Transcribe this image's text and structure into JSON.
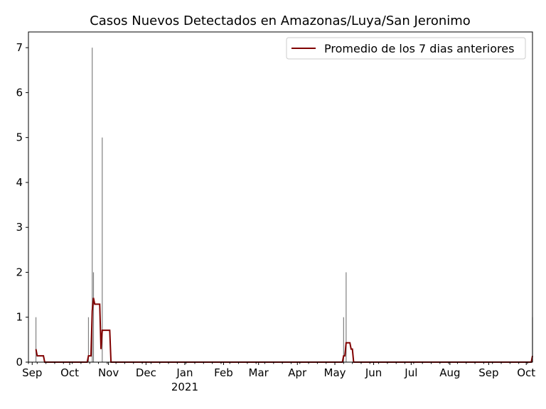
{
  "chart_data": {
    "type": "bar",
    "title": "Casos Nuevos Detectados en Amazonas/Luya/San Jeronimo",
    "xlabel": "",
    "ylabel": "",
    "xlim": [
      "2020-08-29",
      "2021-10-06"
    ],
    "ylim": [
      0,
      7.35
    ],
    "yticks": [
      0,
      1,
      2,
      3,
      4,
      5,
      6,
      7
    ],
    "xticks": [
      {
        "date": "2020-09-01",
        "label": "Sep"
      },
      {
        "date": "2020-10-01",
        "label": "Oct"
      },
      {
        "date": "2020-11-01",
        "label": "Nov"
      },
      {
        "date": "2020-12-01",
        "label": "Dec"
      },
      {
        "date": "2021-01-01",
        "label": "Jan",
        "sublabel": "2021"
      },
      {
        "date": "2021-02-01",
        "label": "Feb"
      },
      {
        "date": "2021-03-01",
        "label": "Mar"
      },
      {
        "date": "2021-04-01",
        "label": "Apr"
      },
      {
        "date": "2021-05-01",
        "label": "May"
      },
      {
        "date": "2021-06-01",
        "label": "Jun"
      },
      {
        "date": "2021-07-01",
        "label": "Jul"
      },
      {
        "date": "2021-08-01",
        "label": "Aug"
      },
      {
        "date": "2021-09-01",
        "label": "Sep"
      },
      {
        "date": "2021-10-01",
        "label": "Oct"
      }
    ],
    "grid": false,
    "legend": "top-right",
    "bars": {
      "color": "#808080",
      "points": [
        [
          "2020-09-04",
          1
        ],
        [
          "2020-10-16",
          1
        ],
        [
          "2020-10-19",
          7
        ],
        [
          "2020-10-20",
          2
        ],
        [
          "2020-10-27",
          5
        ],
        [
          "2021-05-08",
          1
        ],
        [
          "2021-05-10",
          2
        ],
        [
          "2021-10-06",
          1
        ]
      ]
    },
    "series": [
      {
        "name": "Promedio de los 7 dias anteriores",
        "color": "#800000",
        "points": [
          [
            "2020-09-04",
            0.29
          ],
          [
            "2020-09-05",
            0.14
          ],
          [
            "2020-09-10",
            0.14
          ],
          [
            "2020-09-11",
            0
          ],
          [
            "2020-10-15",
            0
          ],
          [
            "2020-10-16",
            0.14
          ],
          [
            "2020-10-18",
            0.14
          ],
          [
            "2020-10-19",
            1.14
          ],
          [
            "2020-10-20",
            1.43
          ],
          [
            "2020-10-21",
            1.29
          ],
          [
            "2020-10-25",
            1.29
          ],
          [
            "2020-10-26",
            0.29
          ],
          [
            "2020-10-27",
            0.71
          ],
          [
            "2020-11-02",
            0.71
          ],
          [
            "2020-11-03",
            0
          ],
          [
            "2021-05-07",
            0
          ],
          [
            "2021-05-08",
            0.14
          ],
          [
            "2021-05-09",
            0.14
          ],
          [
            "2021-05-10",
            0.43
          ],
          [
            "2021-05-13",
            0.43
          ],
          [
            "2021-05-14",
            0.29
          ],
          [
            "2021-05-15",
            0.29
          ],
          [
            "2021-05-16",
            0
          ],
          [
            "2021-10-05",
            0
          ],
          [
            "2021-10-06",
            0.14
          ]
        ]
      }
    ]
  }
}
